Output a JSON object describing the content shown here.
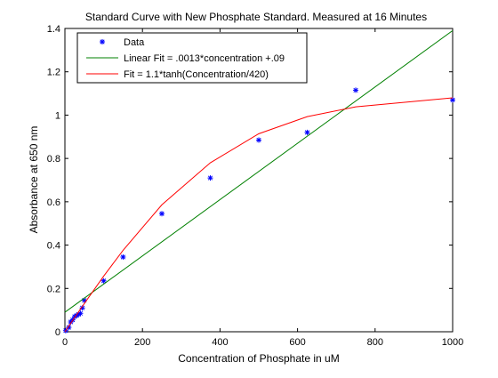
{
  "chart_data": {
    "type": "line",
    "title": "Standard Curve with New Phosphate Standard. Measured at 16 Minutes",
    "xlabel": "Concentration of Phosphate in uM",
    "ylabel": "Absorbance at 650 nm",
    "xlim": [
      0,
      1000
    ],
    "ylim": [
      0,
      1.4
    ],
    "xticks": [
      0,
      200,
      400,
      600,
      800,
      1000
    ],
    "xtick_labels": [
      "0",
      "200",
      "400",
      "600",
      "800",
      "1000"
    ],
    "yticks": [
      0,
      0.2,
      0.4,
      0.6,
      0.8,
      1.0,
      1.2,
      1.4
    ],
    "ytick_labels": [
      "0",
      "0.2",
      "0.4",
      "0.6",
      "0.8",
      "1",
      "1.2",
      "1.4"
    ],
    "grid": false,
    "legend_position": "top-left",
    "series": [
      {
        "name": "Data",
        "kind": "scatter",
        "marker": "*",
        "color": "#0000ff",
        "x": [
          2,
          10,
          15,
          20,
          25,
          30,
          35,
          40,
          45,
          50,
          100,
          150,
          250,
          375,
          500,
          625,
          750,
          1000
        ],
        "y": [
          0.005,
          0.02,
          0.045,
          0.055,
          0.07,
          0.075,
          0.08,
          0.085,
          0.11,
          0.145,
          0.235,
          0.345,
          0.545,
          0.71,
          0.885,
          0.92,
          1.115,
          1.07
        ]
      },
      {
        "name": "Linear Fit = .0013*concentration +.09",
        "kind": "line",
        "color": "#008000",
        "x": [
          0,
          1000
        ],
        "y": [
          0.09,
          1.39
        ]
      },
      {
        "name": "Fit = 1.1*tanh(Concentration/420)",
        "kind": "line",
        "color": "#ff0000",
        "x": [
          0,
          10,
          15,
          20,
          25,
          30,
          35,
          40,
          45,
          50,
          100,
          150,
          250,
          375,
          500,
          625,
          750,
          1000
        ],
        "y": [
          0,
          0.026,
          0.039,
          0.052,
          0.065,
          0.078,
          0.091,
          0.105,
          0.117,
          0.13,
          0.257,
          0.376,
          0.586,
          0.78,
          0.914,
          0.993,
          1.038,
          1.08
        ]
      }
    ]
  }
}
